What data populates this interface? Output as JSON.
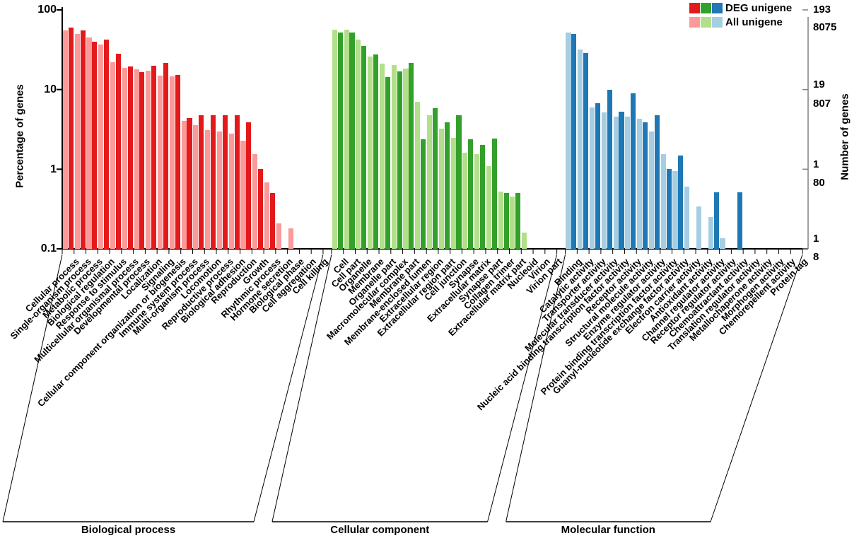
{
  "legend": {
    "deg_label": "DEG unigene",
    "all_label": "All unigene"
  },
  "y_axis": {
    "label": "Percentage of genes",
    "ticks": [
      "100",
      "10",
      "1",
      "0.1"
    ]
  },
  "right_axis": {
    "label": "Number of genes",
    "ticks": [
      {
        "top": "193",
        "bottom": "8075"
      },
      {
        "top": "19",
        "bottom": "807"
      },
      {
        "top": "1",
        "bottom": "80"
      },
      {
        "top": "1",
        "bottom": "8"
      }
    ]
  },
  "colors": {
    "deg_red": "#E31A1C",
    "all_red": "#FB9A99",
    "deg_green": "#33A02C",
    "all_green": "#B2DF8A",
    "deg_blue": "#1F78B4",
    "all_blue": "#A6CEE3",
    "left_axis": "#000000",
    "right_axis": "#808080"
  },
  "chart_data": {
    "type": "bar",
    "y_scale": "log",
    "ylim": [
      0.1,
      100
    ],
    "ylabel": "Percentage of genes",
    "ylabel_right": "Number of genes",
    "series_names": [
      "All unigene",
      "DEG unigene"
    ],
    "groups": [
      {
        "name": "Biological process",
        "all_color": "#FB9A99",
        "deg_color": "#E31A1C",
        "categories": [
          {
            "label": "Cellular process",
            "all": 55,
            "deg": 60
          },
          {
            "label": "Single-organism process",
            "all": 50,
            "deg": 55
          },
          {
            "label": "Metabolic process",
            "all": 45,
            "deg": 40
          },
          {
            "label": "Biological regulation",
            "all": 37,
            "deg": 42
          },
          {
            "label": "Response to stimulus",
            "all": 22,
            "deg": 28
          },
          {
            "label": "Multicellular organismal process",
            "all": 18.8,
            "deg": 19.6
          },
          {
            "label": "Developmental process",
            "all": 17.9,
            "deg": 16.7
          },
          {
            "label": "Localization",
            "all": 17.2,
            "deg": 19.8
          },
          {
            "label": "Signaling",
            "all": 15,
            "deg": 21.5
          },
          {
            "label": "Cellular component organization or biogenesis",
            "all": 14.6,
            "deg": 15.3
          },
          {
            "label": "Immune system process",
            "all": 4.05,
            "deg": 4.4
          },
          {
            "label": "Multi-organism process",
            "all": 3.6,
            "deg": 4.8
          },
          {
            "label": "Locomotion",
            "all": 3.1,
            "deg": 4.8
          },
          {
            "label": "Reproductive process",
            "all": 3.0,
            "deg": 4.8
          },
          {
            "label": "Biological adhesion",
            "all": 2.8,
            "deg": 4.8
          },
          {
            "label": "Reproduction",
            "all": 2.3,
            "deg": 3.9
          },
          {
            "label": "Growth",
            "all": 1.55,
            "deg": 1.0
          },
          {
            "label": "Rhythmic process",
            "all": 0.68,
            "deg": 0.5
          },
          {
            "label": "Hormone secretion",
            "all": 0.21,
            "deg": 0
          },
          {
            "label": "Biological phase",
            "all": 0.18,
            "deg": 0
          },
          {
            "label": "Cell aggregation",
            "all": 0,
            "deg": 0
          },
          {
            "label": "Cell killing",
            "all": 0,
            "deg": 0
          }
        ]
      },
      {
        "name": "Cellular component",
        "all_color": "#B2DF8A",
        "deg_color": "#33A02C",
        "categories": [
          {
            "label": "Cell",
            "all": 56,
            "deg": 52
          },
          {
            "label": "Cell part",
            "all": 56,
            "deg": 52
          },
          {
            "label": "Organelle",
            "all": 42,
            "deg": 35
          },
          {
            "label": "Membrane",
            "all": 26,
            "deg": 27.5
          },
          {
            "label": "Organelle part",
            "all": 21,
            "deg": 14.5
          },
          {
            "label": "Macromolecular complex",
            "all": 20.5,
            "deg": 17
          },
          {
            "label": "Membrane part",
            "all": 18.2,
            "deg": 21.4
          },
          {
            "label": "Membrane-enclosed lumen",
            "all": 7.0,
            "deg": 2.4
          },
          {
            "label": "Extracellular region",
            "all": 4.8,
            "deg": 5.8
          },
          {
            "label": "Extracellular region part",
            "all": 3.2,
            "deg": 3.9
          },
          {
            "label": "Cell junction",
            "all": 2.5,
            "deg": 4.8
          },
          {
            "label": "Synapse",
            "all": 1.6,
            "deg": 2.4
          },
          {
            "label": "Extracellular matrix",
            "all": 1.55,
            "deg": 2.0
          },
          {
            "label": "Synapse part",
            "all": 1.1,
            "deg": 2.45
          },
          {
            "label": "Collagen trimer",
            "all": 0.52,
            "deg": 0.5
          },
          {
            "label": "Extracellular matrix part",
            "all": 0.45,
            "deg": 0.5
          },
          {
            "label": "Nucleoid",
            "all": 0.16,
            "deg": 0
          },
          {
            "label": "Virion",
            "all": 0,
            "deg": 0
          },
          {
            "label": "Virion part",
            "all": 0,
            "deg": 0
          }
        ]
      },
      {
        "name": "Molecular function",
        "all_color": "#A6CEE3",
        "deg_color": "#1F78B4",
        "categories": [
          {
            "label": "Binding",
            "all": 52,
            "deg": 50
          },
          {
            "label": "Catalytic activity",
            "all": 32,
            "deg": 29
          },
          {
            "label": "Transporter activity",
            "all": 6.0,
            "deg": 6.7
          },
          {
            "label": "Molecular transducer activity",
            "all": 5.2,
            "deg": 10.0
          },
          {
            "label": "Nucleic acid binding transcription factor activity",
            "all": 4.6,
            "deg": 5.3
          },
          {
            "label": "Receptor activity",
            "all": 4.6,
            "deg": 8.9
          },
          {
            "label": "Structural molecule activity",
            "all": 4.3,
            "deg": 3.9
          },
          {
            "label": "Enzyme regulator activity",
            "all": 3.0,
            "deg": 4.8
          },
          {
            "label": "Protein binding transcription factor activity",
            "all": 1.55,
            "deg": 1.0
          },
          {
            "label": "Guanyl-nucleotide exchange factor activity",
            "all": 0.94,
            "deg": 1.5
          },
          {
            "label": "Electron carrier activity",
            "all": 0.61,
            "deg": 0
          },
          {
            "label": "Antioxidant activity",
            "all": 0.34,
            "deg": 0
          },
          {
            "label": "Channel regulator activity",
            "all": 0.25,
            "deg": 0.51
          },
          {
            "label": "Receptor regulator activity",
            "all": 0.135,
            "deg": 0
          },
          {
            "label": "Chemoattractant activity",
            "all": 0,
            "deg": 0.51
          },
          {
            "label": "Translation regulator activity",
            "all": 0,
            "deg": 0
          },
          {
            "label": "Metallochaperone activity",
            "all": 0,
            "deg": 0
          },
          {
            "label": "Morphogen activity",
            "all": 0,
            "deg": 0
          },
          {
            "label": "Chemorepellent activity",
            "all": 0,
            "deg": 0
          },
          {
            "label": "Protein tag",
            "all": 0,
            "deg": 0
          }
        ]
      }
    ]
  }
}
